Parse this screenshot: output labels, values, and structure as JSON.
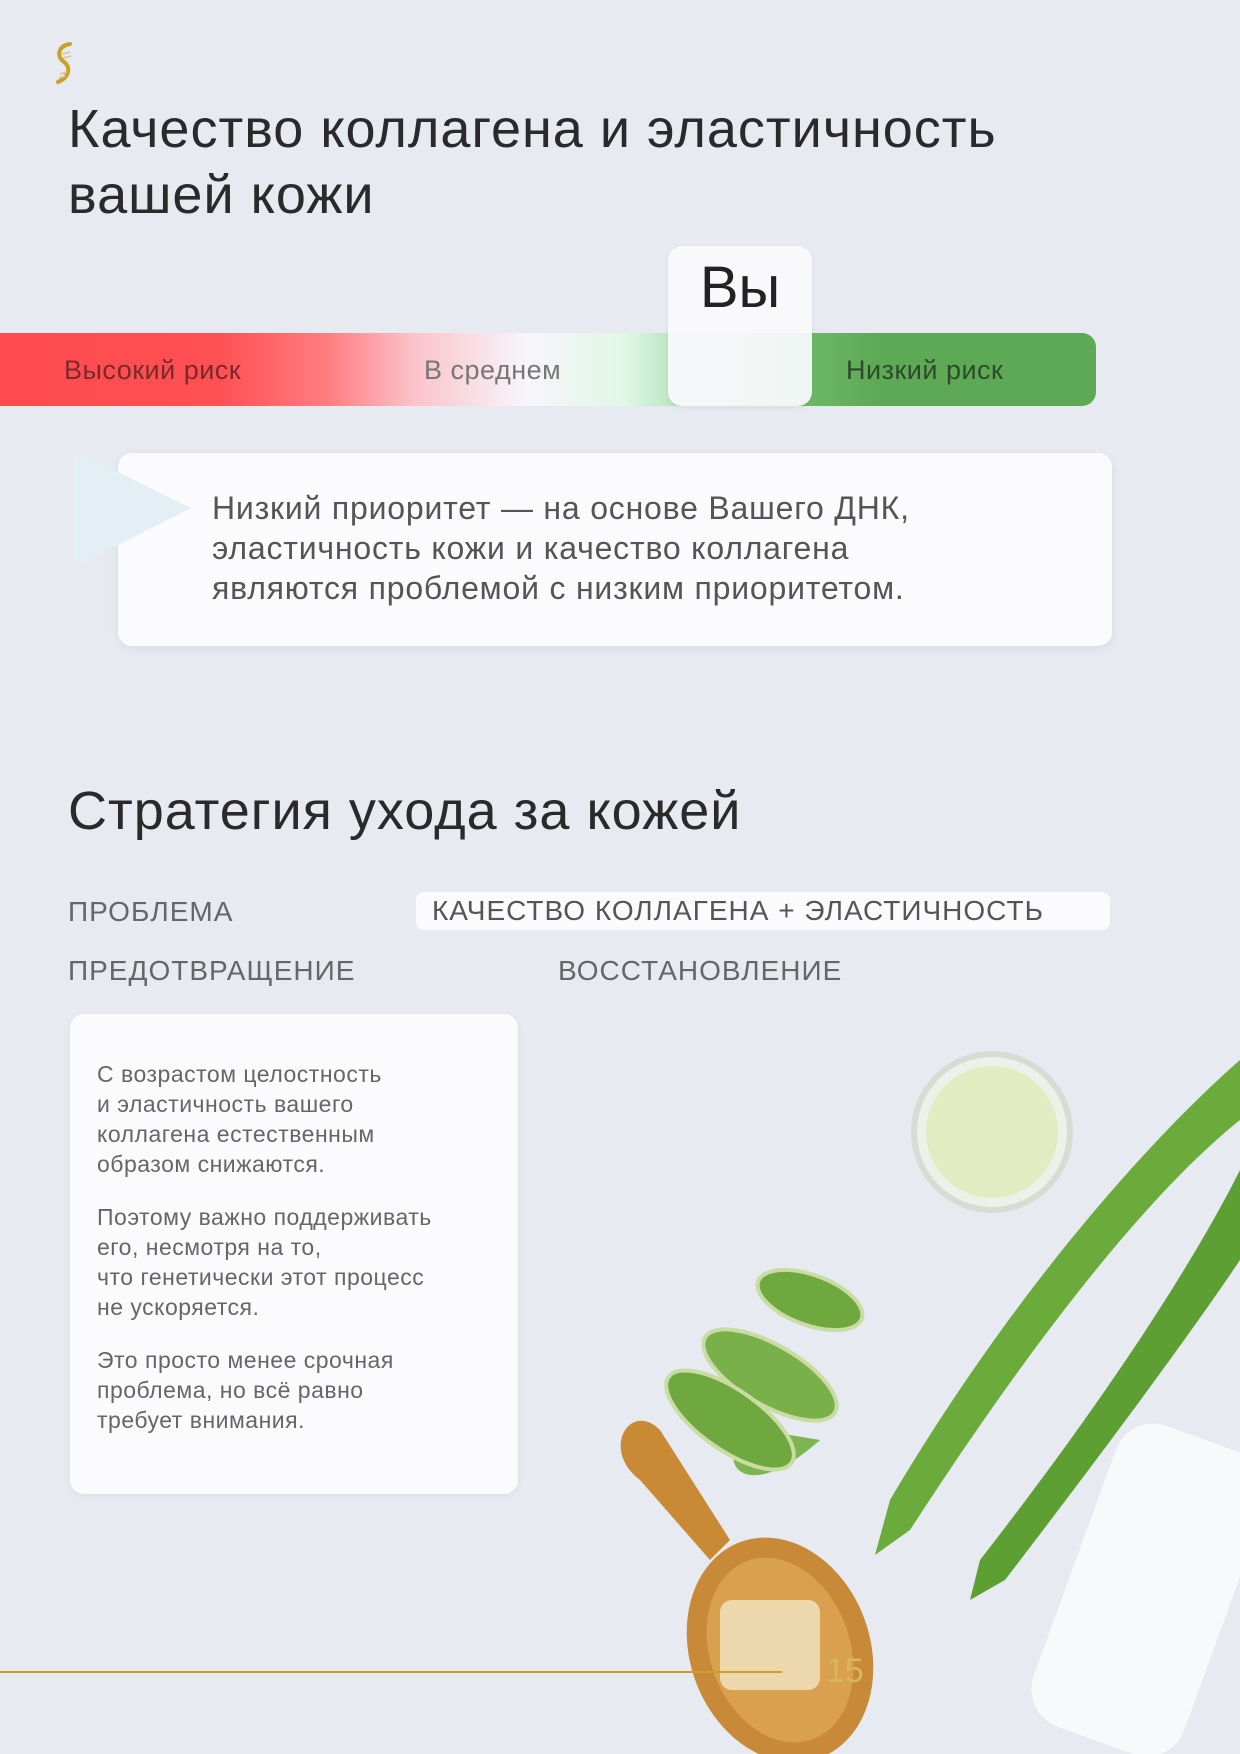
{
  "logo": {
    "icon": "dna-helix-icon",
    "color": "#c9a028"
  },
  "title": {
    "line1": "Качество коллагена и эластичность",
    "line2": "вашей кожи"
  },
  "risk_scale": {
    "labels": [
      "Высокий риск",
      "В среднем",
      "Низкий риск"
    ],
    "marker_label": "Вы",
    "marker_position": "between В среднем and Низкий риск",
    "colors": {
      "high": "#ff4a4e",
      "low": "#5ea955"
    }
  },
  "callout": {
    "icon": "play-triangle-icon",
    "lines": [
      "Низкий приоритет — на основе Вашего ДНК,",
      "эластичность кожи и качество коллагена",
      "являются проблемой с низким приоритетом."
    ]
  },
  "strategy": {
    "heading": "Стратегия ухода за кожей",
    "problem_label": "ПРОБЛЕМА",
    "problem_value": "КАЧЕСТВО КОЛЛАГЕНА + ЭЛАСТИЧНОСТЬ",
    "prevention_label": "ПРЕДОТВРАЩЕНИЕ",
    "recovery_label": "ВОССТАНОВЛЕНИЕ",
    "paragraphs": [
      [
        "С возрастом целостность",
        "и эластичность вашего",
        "коллагена естественным",
        "образом снижаются."
      ],
      [
        "Поэтому важно поддерживать",
        "его, несмотря на то,",
        "что генетически этот процесс",
        "не ускоряется."
      ],
      [
        "Это просто менее срочная",
        "проблема, но всё равно",
        "требует внимания."
      ]
    ]
  },
  "footer": {
    "page_number": "15",
    "line_color": "#c9a028"
  }
}
